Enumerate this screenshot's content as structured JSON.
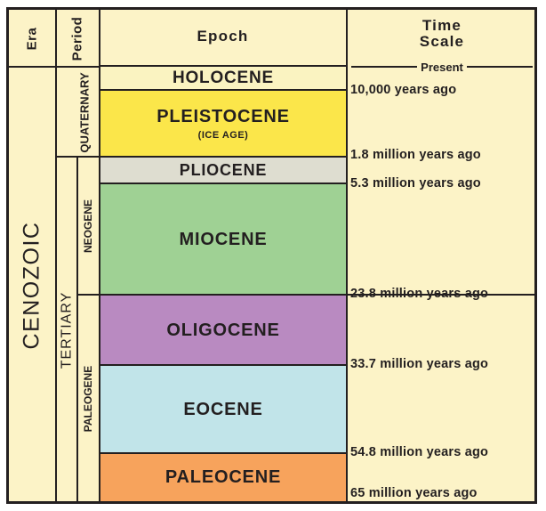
{
  "headers": {
    "era": "Era",
    "period": "Period",
    "epoch": "Epoch",
    "time_line1": "Time",
    "time_line2": "Scale"
  },
  "era": "CENOZOIC",
  "periods": {
    "quaternary": "QUATERNARY",
    "tertiary": "TERTIARY",
    "neogene": "NEOGENE",
    "paleogene": "PALEOGENE"
  },
  "epochs": [
    {
      "name": "HOLOCENE",
      "subtitle": "",
      "color": "#faf3c1"
    },
    {
      "name": "PLEISTOCENE",
      "subtitle": "(ICE AGE)",
      "color": "#fbe64a"
    },
    {
      "name": "PLIOCENE",
      "subtitle": "",
      "color": "#deddd0"
    },
    {
      "name": "MIOCENE",
      "subtitle": "",
      "color": "#9fd194"
    },
    {
      "name": "OLIGOCENE",
      "subtitle": "",
      "color": "#b98ac1"
    },
    {
      "name": "EOCENE",
      "subtitle": "",
      "color": "#c1e4e9"
    },
    {
      "name": "PALEOCENE",
      "subtitle": "",
      "color": "#f7a35c"
    }
  ],
  "time_scale": {
    "present": "Present",
    "labels": [
      "10,000 years ago",
      "1.8 million years ago",
      "5.3 million years ago",
      "23.8 million years ago",
      "33.7 million years ago",
      "54.8 million years ago",
      "65 million years ago"
    ]
  },
  "colors": {
    "background": "#fcf3c7",
    "lines": "#231f20"
  }
}
